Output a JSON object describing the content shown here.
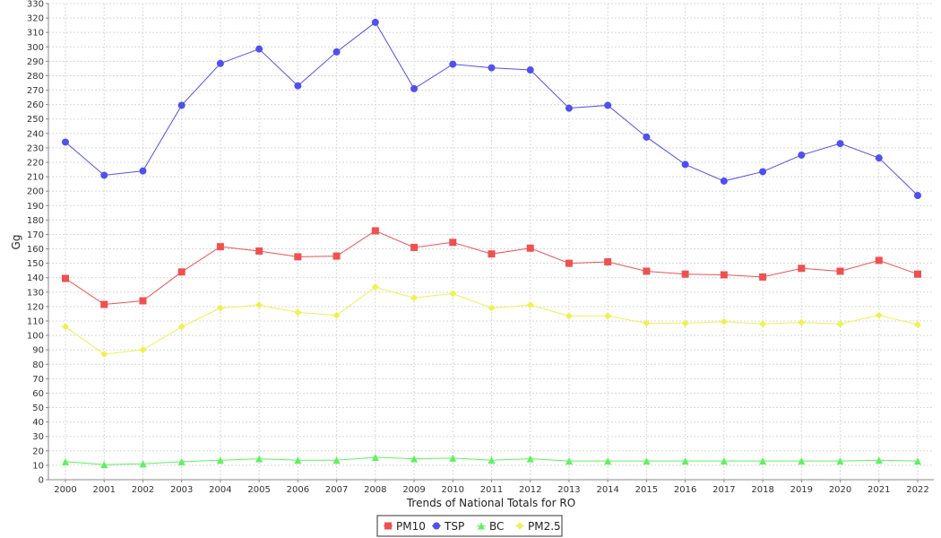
{
  "chart_data": {
    "type": "line",
    "title": "",
    "xlabel": "Trends of National Totals for RO",
    "ylabel": "Gg",
    "ylim": [
      0,
      330
    ],
    "ytick_step": 10,
    "grid": true,
    "legend_position": "bottom",
    "categories": [
      "2000",
      "2001",
      "2002",
      "2003",
      "2004",
      "2005",
      "2006",
      "2007",
      "2008",
      "2009",
      "2010",
      "2011",
      "2012",
      "2013",
      "2014",
      "2015",
      "2016",
      "2017",
      "2018",
      "2019",
      "2020",
      "2021",
      "2022"
    ],
    "series": [
      {
        "name": "PM10",
        "color": "#f05050",
        "marker": "square",
        "values": [
          139.5,
          121.5,
          124,
          144,
          161.5,
          158.5,
          154.5,
          155,
          172.5,
          161,
          164.5,
          156.5,
          160.5,
          150,
          151,
          144.5,
          142.5,
          142,
          140.5,
          146.5,
          144.5,
          152,
          142.5
        ]
      },
      {
        "name": "TSP",
        "color": "#5050f0",
        "marker": "circle",
        "values": [
          234,
          211,
          214,
          259.5,
          288.5,
          298.5,
          273,
          296.5,
          317,
          271,
          288,
          285.5,
          284,
          257.5,
          259.5,
          237.5,
          218.5,
          207,
          213.5,
          225,
          233,
          223,
          197
        ]
      },
      {
        "name": "BC",
        "color": "#60f060",
        "marker": "triangle",
        "values": [
          12.5,
          10.5,
          11,
          12.5,
          13.5,
          14.5,
          13.5,
          13.5,
          15.5,
          14.5,
          15,
          13.5,
          14.5,
          13,
          13,
          13,
          13,
          13,
          13,
          13,
          13,
          13.5,
          13
        ]
      },
      {
        "name": "PM2.5",
        "color": "#f0f050",
        "marker": "diamond",
        "values": [
          106,
          87,
          90,
          106,
          119,
          121,
          116,
          114,
          133.5,
          126,
          129,
          119,
          121,
          113.5,
          113.5,
          108.5,
          108.5,
          109.5,
          108,
          109,
          108,
          114,
          107.5
        ]
      }
    ]
  }
}
